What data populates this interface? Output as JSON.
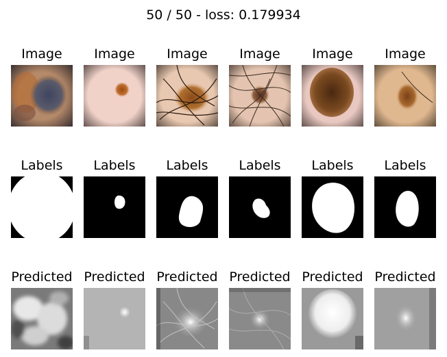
{
  "title": "50 / 50 - loss: 0.179934",
  "rows": [
    {
      "name": "image",
      "label": "Image"
    },
    {
      "name": "labels",
      "label": "Labels"
    },
    {
      "name": "predicted",
      "label": "Predicted"
    }
  ],
  "columns": 6
}
